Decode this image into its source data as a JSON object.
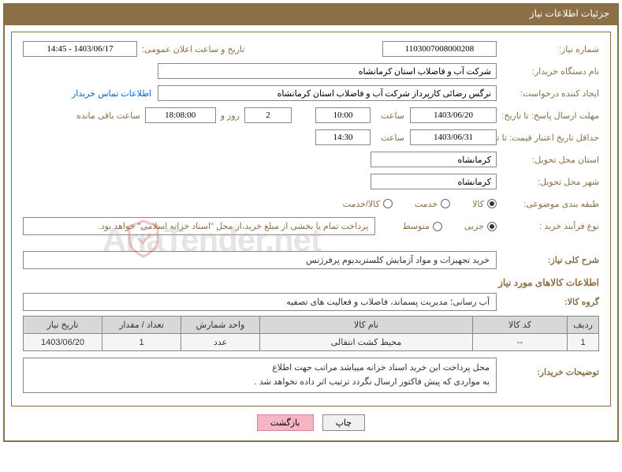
{
  "panel": {
    "title": "جزئیات اطلاعات نیاز"
  },
  "fields": {
    "need_number_label": "شماره نیاز:",
    "need_number": "1103007008000208",
    "announce_datetime_label": "تاریخ و ساعت اعلان عمومی:",
    "announce_datetime": "1403/06/17 - 14:45",
    "buyer_org_label": "نام دستگاه خریدار:",
    "buyer_org": "شرکت آب و فاضلاب استان کرمانشاه",
    "requester_label": "ایجاد کننده درخواست:",
    "requester": "نرگس رضائی کارپرداز شرکت آب و فاضلاب استان کرمانشاه",
    "contact_link": "اطلاعات تماس خریدار",
    "deadline_label": "مهلت ارسال پاسخ: تا تاریخ:",
    "deadline_date": "1403/06/20",
    "time_label": "ساعت",
    "deadline_time": "10:00",
    "days_count": "2",
    "days_and_label": "روز و",
    "remaining_time": "18:08:00",
    "remaining_label": "ساعت باقی مانده",
    "validity_label": "حداقل تاریخ اعتبار قیمت: تا تاریخ:",
    "validity_date": "1403/06/31",
    "validity_time": "14:30",
    "delivery_province_label": "استان محل تحویل:",
    "delivery_province": "کرمانشاه",
    "delivery_city_label": "شهر محل تحویل:",
    "delivery_city": "کرمانشاه",
    "category_label": "طبقه بندی موضوعی:",
    "category_opts": [
      "کالا",
      "خدمت",
      "کالا/خدمت"
    ],
    "category_selected": 0,
    "process_type_label": "نوع فرآیند خرید :",
    "process_opts": [
      "جزیی",
      "متوسط"
    ],
    "process_selected": 0,
    "process_note": "پرداخت تمام یا بخشی از مبلغ خرید،از محل \"اسناد خزانه اسلامی\" خواهد بود.",
    "desc_label": "شرح کلی نیاز:",
    "desc_value": "خرید تجهیزات و مواد آزمایش کلستریدیوم پرفرژنس",
    "goods_section": "اطلاعات کالاهای مورد نیاز",
    "goods_group_label": "گروه کالا:",
    "goods_group": "آب رسانی؛ مدیریت پسماند، فاضلاب و فعالیت های تصفیه",
    "buyer_notes_label": "توضیحات خریدار:",
    "buyer_notes_line1": "محل پرداخت این خرید اسناد خزانه میباشد مراتب جهت اطلاع",
    "buyer_notes_line2": "به مواردی که پیش فاکتور ارسال نگردد ترتیب اثر داده نخواهد شد ."
  },
  "table": {
    "headers": [
      "ردیف",
      "کد کالا",
      "نام کالا",
      "واحد شمارش",
      "تعداد / مقدار",
      "تاریخ نیاز"
    ],
    "col_widths": [
      "40px",
      "120px",
      "auto",
      "100px",
      "100px",
      "100px"
    ],
    "rows": [
      [
        "1",
        "--",
        "محیط کشت انتقالی",
        "عدد",
        "1",
        "1403/06/20"
      ]
    ]
  },
  "buttons": {
    "print": "چاپ",
    "back": "بازگشت"
  },
  "watermark": "AriaTender.net",
  "colors": {
    "brand": "#8b6f47",
    "link": "#0066cc",
    "header_bg": "#d8d8d8",
    "row_bg": "#f5f5f5"
  }
}
